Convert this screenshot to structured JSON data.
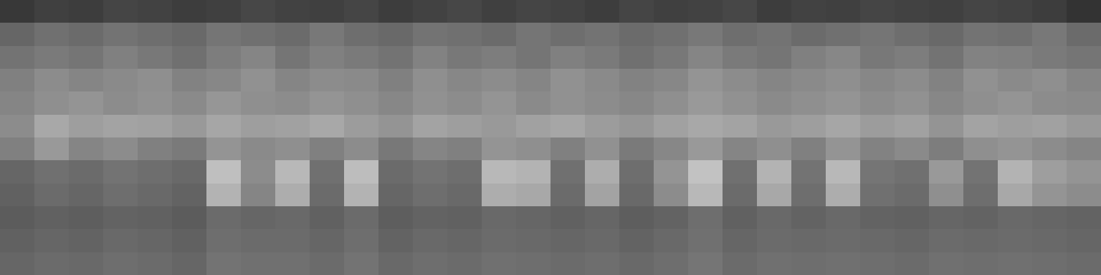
{
  "chart_data": {
    "type": "heatmap",
    "tick_labels": false,
    "value_range": [
      0,
      1
    ],
    "cells": [
      [
        0.22,
        0.25,
        0.24,
        0.27,
        0.26,
        0.24,
        0.25,
        0.28,
        0.26,
        0.25,
        0.27,
        0.24,
        0.26,
        0.28,
        0.25,
        0.27,
        0.26,
        0.24,
        0.27,
        0.25,
        0.26,
        0.28,
        0.24,
        0.26,
        0.25,
        0.27,
        0.26,
        0.25,
        0.27,
        0.26,
        0.24,
        0.2
      ],
      [
        0.4,
        0.44,
        0.42,
        0.45,
        0.43,
        0.41,
        0.46,
        0.44,
        0.42,
        0.47,
        0.43,
        0.41,
        0.45,
        0.44,
        0.42,
        0.46,
        0.43,
        0.45,
        0.42,
        0.44,
        0.47,
        0.43,
        0.45,
        0.42,
        0.44,
        0.46,
        0.43,
        0.41,
        0.45,
        0.44,
        0.47,
        0.42
      ],
      [
        0.45,
        0.48,
        0.46,
        0.5,
        0.47,
        0.44,
        0.49,
        0.52,
        0.46,
        0.5,
        0.48,
        0.45,
        0.51,
        0.47,
        0.49,
        0.46,
        0.5,
        0.48,
        0.44,
        0.47,
        0.52,
        0.48,
        0.46,
        0.5,
        0.53,
        0.47,
        0.49,
        0.45,
        0.51,
        0.5,
        0.48,
        0.46
      ],
      [
        0.5,
        0.55,
        0.52,
        0.54,
        0.56,
        0.51,
        0.53,
        0.57,
        0.52,
        0.55,
        0.54,
        0.5,
        0.56,
        0.53,
        0.55,
        0.52,
        0.57,
        0.54,
        0.51,
        0.53,
        0.58,
        0.55,
        0.52,
        0.54,
        0.56,
        0.53,
        0.55,
        0.51,
        0.57,
        0.54,
        0.56,
        0.52
      ],
      [
        0.52,
        0.56,
        0.58,
        0.55,
        0.57,
        0.54,
        0.59,
        0.56,
        0.55,
        0.58,
        0.56,
        0.53,
        0.57,
        0.55,
        0.58,
        0.54,
        0.57,
        0.55,
        0.53,
        0.56,
        0.6,
        0.57,
        0.54,
        0.56,
        0.58,
        0.55,
        0.57,
        0.53,
        0.56,
        0.58,
        0.55,
        0.54
      ],
      [
        0.55,
        0.66,
        0.62,
        0.64,
        0.63,
        0.6,
        0.65,
        0.62,
        0.63,
        0.66,
        0.61,
        0.58,
        0.64,
        0.62,
        0.6,
        0.63,
        0.65,
        0.61,
        0.59,
        0.63,
        0.66,
        0.64,
        0.6,
        0.62,
        0.65,
        0.61,
        0.63,
        0.58,
        0.64,
        0.62,
        0.63,
        0.6
      ],
      [
        0.5,
        0.6,
        0.52,
        0.55,
        0.5,
        0.48,
        0.58,
        0.54,
        0.56,
        0.5,
        0.55,
        0.47,
        0.52,
        0.5,
        0.58,
        0.56,
        0.5,
        0.57,
        0.48,
        0.53,
        0.6,
        0.52,
        0.56,
        0.5,
        0.58,
        0.51,
        0.54,
        0.49,
        0.56,
        0.58,
        0.55,
        0.52
      ],
      [
        0.4,
        0.44,
        0.42,
        0.45,
        0.43,
        0.41,
        0.75,
        0.55,
        0.72,
        0.44,
        0.74,
        0.42,
        0.45,
        0.43,
        0.72,
        0.7,
        0.44,
        0.68,
        0.43,
        0.58,
        0.76,
        0.44,
        0.7,
        0.45,
        0.72,
        0.46,
        0.44,
        0.6,
        0.45,
        0.7,
        0.62,
        0.58
      ],
      [
        0.38,
        0.42,
        0.4,
        0.43,
        0.41,
        0.39,
        0.7,
        0.52,
        0.68,
        0.42,
        0.7,
        0.4,
        0.43,
        0.41,
        0.68,
        0.66,
        0.42,
        0.64,
        0.41,
        0.55,
        0.72,
        0.42,
        0.66,
        0.43,
        0.68,
        0.44,
        0.42,
        0.56,
        0.43,
        0.66,
        0.58,
        0.55
      ],
      [
        0.36,
        0.38,
        0.37,
        0.39,
        0.38,
        0.36,
        0.42,
        0.4,
        0.41,
        0.38,
        0.42,
        0.37,
        0.39,
        0.38,
        0.41,
        0.4,
        0.38,
        0.4,
        0.37,
        0.39,
        0.43,
        0.38,
        0.41,
        0.39,
        0.41,
        0.39,
        0.38,
        0.4,
        0.39,
        0.41,
        0.4,
        0.39
      ],
      [
        0.38,
        0.4,
        0.39,
        0.41,
        0.4,
        0.38,
        0.43,
        0.42,
        0.42,
        0.4,
        0.43,
        0.39,
        0.41,
        0.4,
        0.42,
        0.41,
        0.4,
        0.41,
        0.39,
        0.41,
        0.44,
        0.4,
        0.42,
        0.41,
        0.42,
        0.41,
        0.4,
        0.42,
        0.41,
        0.42,
        0.41,
        0.4
      ],
      [
        0.4,
        0.42,
        0.41,
        0.43,
        0.42,
        0.4,
        0.45,
        0.44,
        0.44,
        0.42,
        0.45,
        0.41,
        0.43,
        0.42,
        0.44,
        0.43,
        0.42,
        0.43,
        0.41,
        0.43,
        0.46,
        0.42,
        0.44,
        0.43,
        0.44,
        0.43,
        0.42,
        0.44,
        0.43,
        0.44,
        0.43,
        0.42
      ]
    ]
  }
}
